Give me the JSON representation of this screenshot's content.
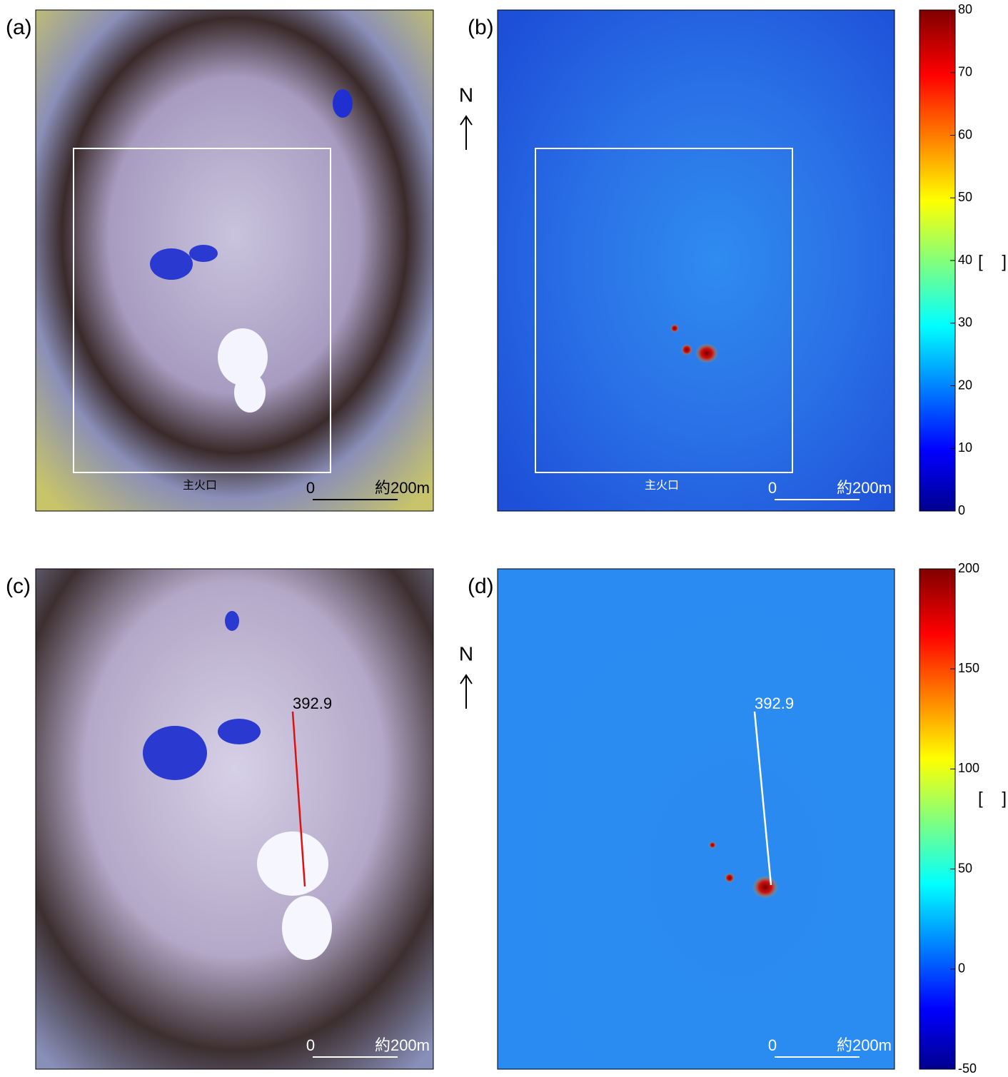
{
  "north": "N",
  "panels": [
    {
      "label": "(a)",
      "crater_label": "主火口",
      "scale_zero": "0",
      "scale_length": "約200m"
    },
    {
      "label": "(b)",
      "crater_label": "主火口",
      "scale_zero": "0",
      "scale_length": "約200m"
    },
    {
      "label": "(c)",
      "point_value": 392.9,
      "scale_zero": "0",
      "scale_length": "約200m"
    },
    {
      "label": "(d)",
      "point_value": 392.9,
      "scale_zero": "0",
      "scale_length": "約200m"
    }
  ],
  "colorbars": [
    {
      "ticks": [
        0,
        10,
        20,
        30,
        40,
        50,
        60,
        70,
        80
      ],
      "unit": "[    ]"
    },
    {
      "ticks": [
        -50,
        0,
        50,
        100,
        150,
        200
      ],
      "unit": "[    ]"
    }
  ]
}
